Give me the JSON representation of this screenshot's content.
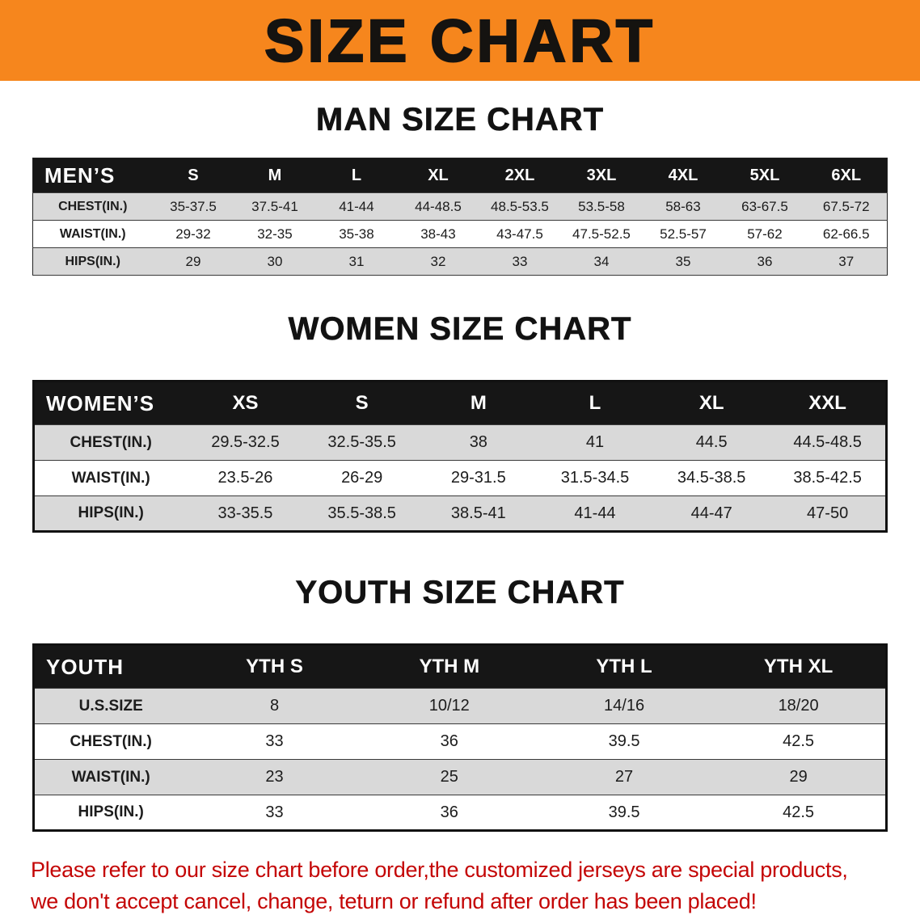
{
  "banner": {
    "title": "SIZE CHART",
    "bg_color": "#f6861d",
    "text_color": "#151310"
  },
  "sections": [
    {
      "heading": "MAN SIZE CHART",
      "table": {
        "header_label": "MEN’S",
        "sizes": [
          "S",
          "M",
          "L",
          "XL",
          "2XL",
          "3XL",
          "4XL",
          "5XL",
          "6XL"
        ],
        "rows": [
          {
            "label": "CHEST(IN.)",
            "values": [
              "35-37.5",
              "37.5-41",
              "41-44",
              "44-48.5",
              "48.5-53.5",
              "53.5-58",
              "58-63",
              "63-67.5",
              "67.5-72"
            ]
          },
          {
            "label": "WAIST(IN.)",
            "values": [
              "29-32",
              "32-35",
              "35-38",
              "38-43",
              "43-47.5",
              "47.5-52.5",
              "52.5-57",
              "57-62",
              "62-66.5"
            ]
          },
          {
            "label": "HIPS(IN.)",
            "values": [
              "29",
              "30",
              "31",
              "32",
              "33",
              "34",
              "35",
              "36",
              "37"
            ]
          }
        ]
      }
    },
    {
      "heading": "WOMEN SIZE CHART",
      "table": {
        "header_label": "WOMEN’S",
        "sizes": [
          "XS",
          "S",
          "M",
          "L",
          "XL",
          "XXL"
        ],
        "rows": [
          {
            "label": "CHEST(IN.)",
            "values": [
              "29.5-32.5",
              "32.5-35.5",
              "38",
              "41",
              "44.5",
              "44.5-48.5"
            ]
          },
          {
            "label": "WAIST(IN.)",
            "values": [
              "23.5-26",
              "26-29",
              "29-31.5",
              "31.5-34.5",
              "34.5-38.5",
              "38.5-42.5"
            ]
          },
          {
            "label": "HIPS(IN.)",
            "values": [
              "33-35.5",
              "35.5-38.5",
              "38.5-41",
              "41-44",
              "44-47",
              "47-50"
            ]
          }
        ]
      }
    },
    {
      "heading": "YOUTH SIZE CHART",
      "table": {
        "header_label": "YOUTH",
        "sizes": [
          "YTH S",
          "YTH M",
          "YTH L",
          "YTH XL"
        ],
        "rows": [
          {
            "label": "U.S.SIZE",
            "values": [
              "8",
              "10/12",
              "14/16",
              "18/20"
            ]
          },
          {
            "label": "CHEST(IN.)",
            "values": [
              "33",
              "36",
              "39.5",
              "42.5"
            ]
          },
          {
            "label": "WAIST(IN.)",
            "values": [
              "23",
              "25",
              "27",
              "29"
            ]
          },
          {
            "label": "HIPS(IN.)",
            "values": [
              "33",
              "36",
              "39.5",
              "42.5"
            ]
          }
        ]
      }
    }
  ],
  "footer": {
    "line1": "Please refer to our size chart before order,the customized jerseys are special products,",
    "line2": "we don't accept cancel, change, teturn or refund after order has been placed!",
    "text_color": "#c40505"
  }
}
